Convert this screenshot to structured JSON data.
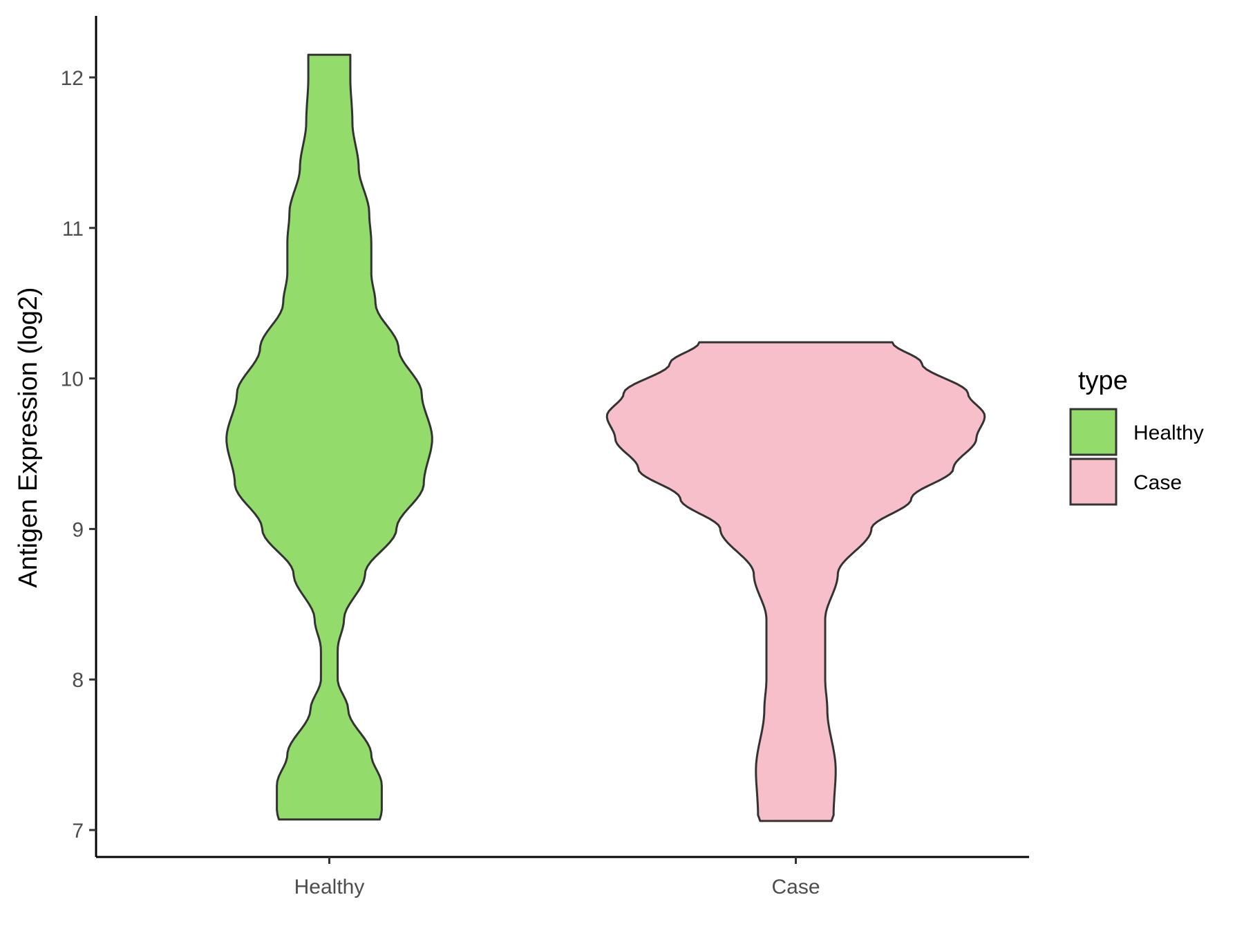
{
  "chart_data": {
    "type": "violin",
    "title": "",
    "xlabel": "",
    "ylabel": "Antigen Expression (log2)",
    "ylim": [
      6.85,
      12.45
    ],
    "yticks": [
      "7",
      "8",
      "9",
      "10",
      "11",
      "12"
    ],
    "categories": [
      "Healthy",
      "Case"
    ],
    "grid": false,
    "legend": {
      "title": "type",
      "position": "right",
      "entries": [
        "Healthy",
        "Case"
      ]
    },
    "series": [
      {
        "name": "Healthy",
        "color": "#93DB6A",
        "min": 7.07,
        "max": 12.15,
        "density_profile": [
          [
            7.07,
            0.24
          ],
          [
            7.12,
            0.25
          ],
          [
            7.3,
            0.25
          ],
          [
            7.5,
            0.2
          ],
          [
            7.8,
            0.09
          ],
          [
            8.0,
            0.04
          ],
          [
            8.2,
            0.04
          ],
          [
            8.4,
            0.07
          ],
          [
            8.7,
            0.17
          ],
          [
            9.0,
            0.32
          ],
          [
            9.3,
            0.45
          ],
          [
            9.6,
            0.49
          ],
          [
            9.9,
            0.44
          ],
          [
            10.2,
            0.33
          ],
          [
            10.5,
            0.22
          ],
          [
            10.7,
            0.2
          ],
          [
            10.9,
            0.2
          ],
          [
            11.1,
            0.19
          ],
          [
            11.4,
            0.14
          ],
          [
            11.7,
            0.11
          ],
          [
            12.0,
            0.1
          ],
          [
            12.15,
            0.1
          ]
        ]
      },
      {
        "name": "Case",
        "color": "#F7BFCA",
        "min": 7.06,
        "max": 10.24,
        "density_profile": [
          [
            7.06,
            0.17
          ],
          [
            7.1,
            0.18
          ],
          [
            7.4,
            0.19
          ],
          [
            7.8,
            0.15
          ],
          [
            8.0,
            0.14
          ],
          [
            8.4,
            0.14
          ],
          [
            8.7,
            0.2
          ],
          [
            9.0,
            0.36
          ],
          [
            9.2,
            0.55
          ],
          [
            9.4,
            0.75
          ],
          [
            9.6,
            0.86
          ],
          [
            9.75,
            0.9
          ],
          [
            9.9,
            0.82
          ],
          [
            10.1,
            0.6
          ],
          [
            10.24,
            0.46
          ]
        ]
      }
    ]
  }
}
